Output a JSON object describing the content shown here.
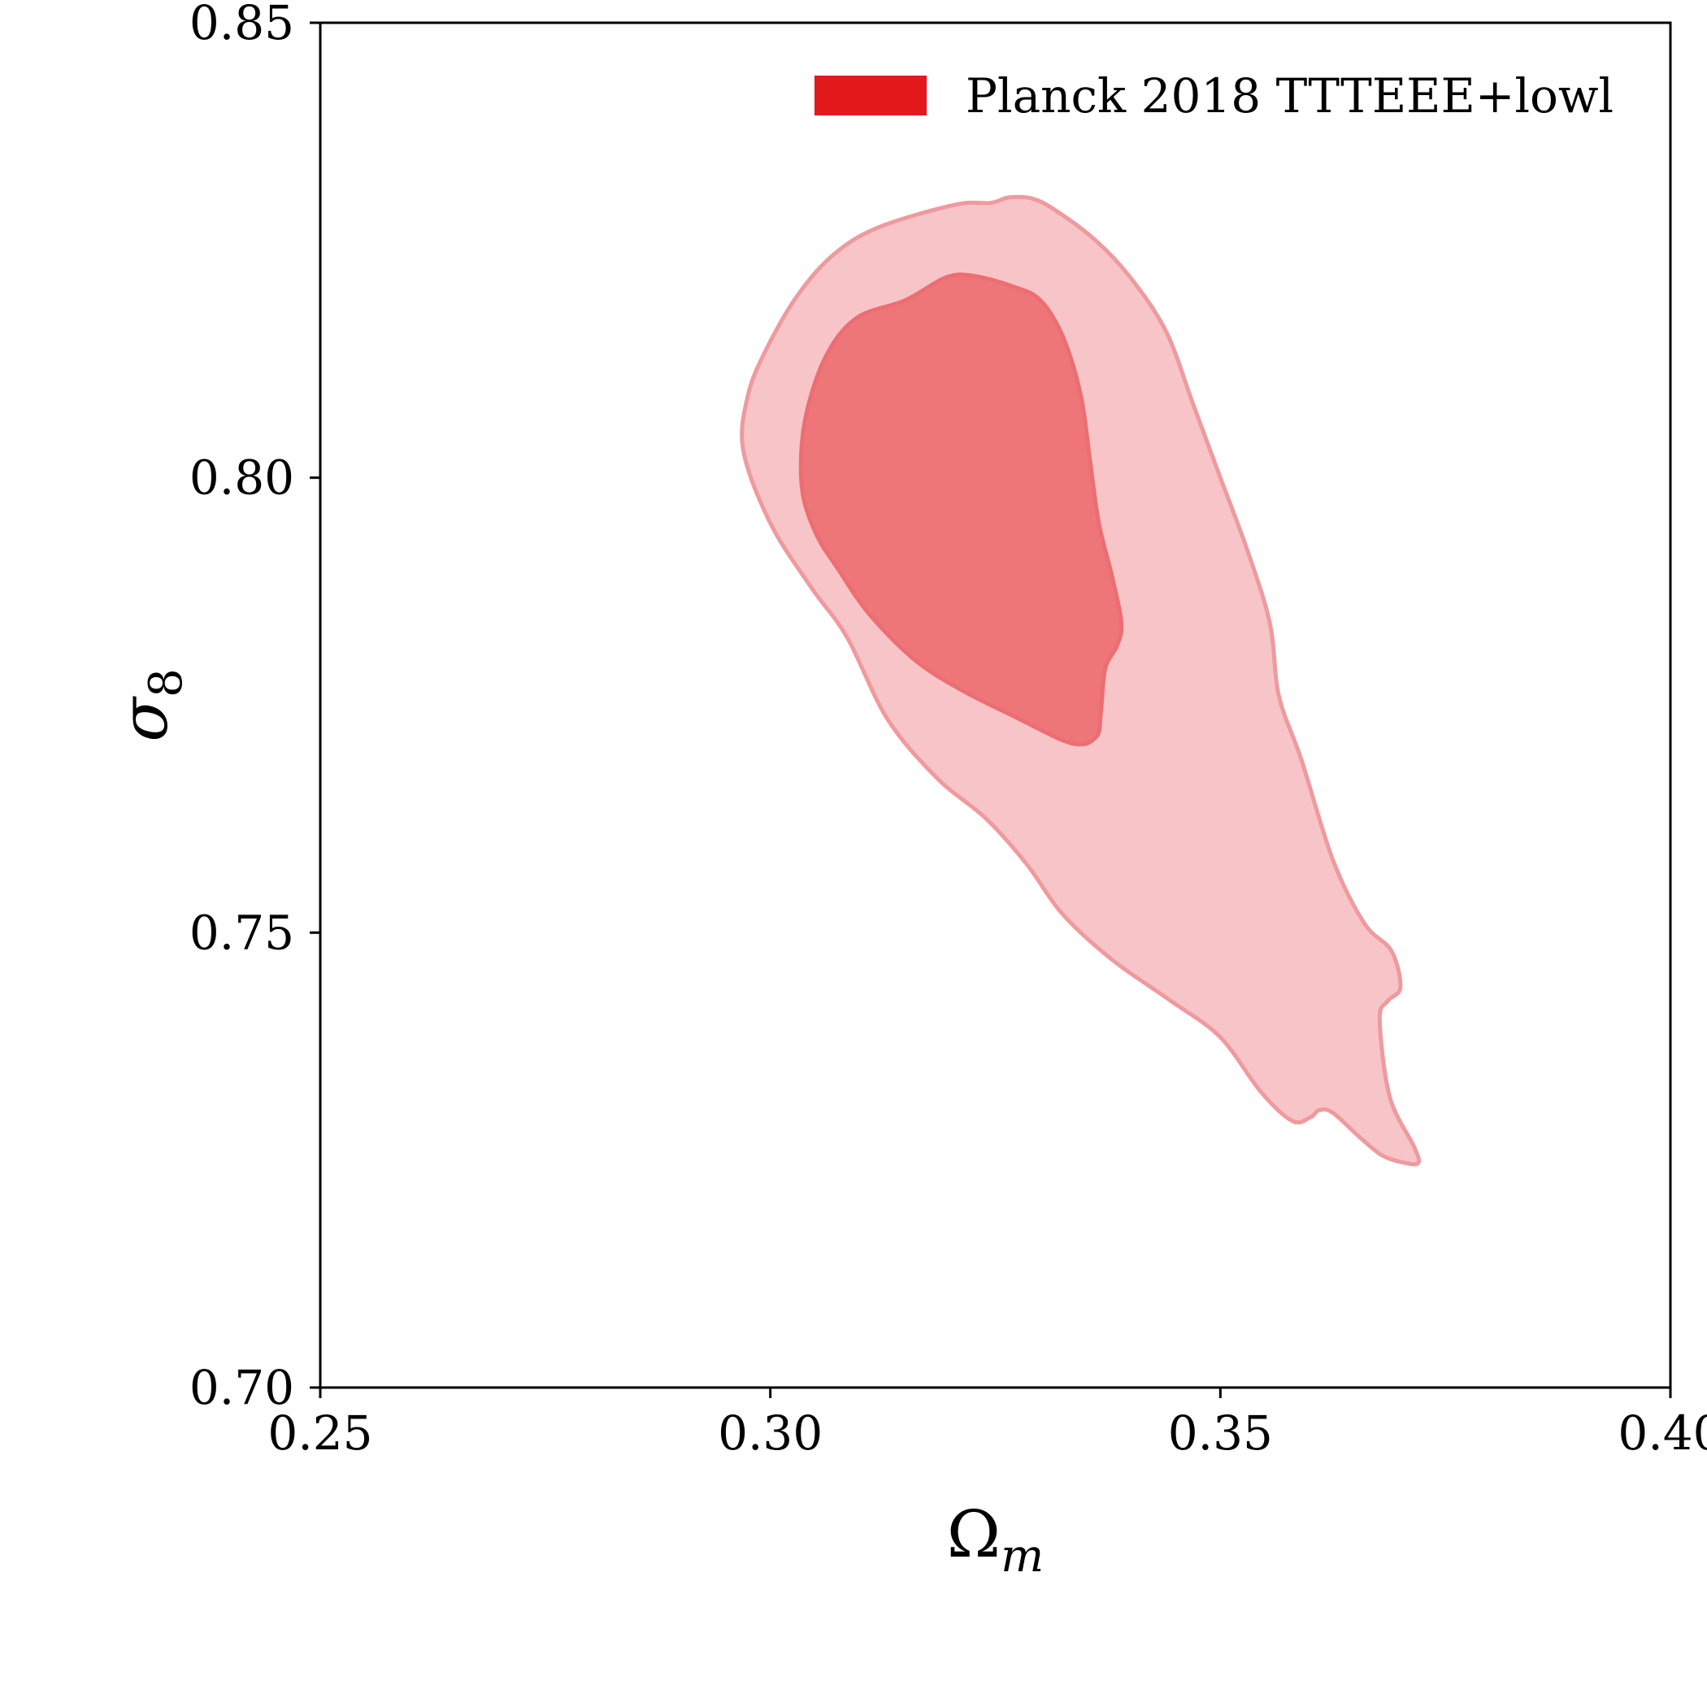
{
  "chart_data": {
    "type": "contour",
    "title": "",
    "xlabel": "Ω",
    "xlabel_sub": "m",
    "ylabel": "σ",
    "ylabel_sub": "8",
    "xlim": [
      0.25,
      0.4
    ],
    "ylim": [
      0.7,
      0.85
    ],
    "xticks": [
      "0.25",
      "0.30",
      "0.35",
      "0.40"
    ],
    "yticks": [
      "0.70",
      "0.75",
      "0.80",
      "0.85"
    ],
    "grid": false,
    "legend_position": "top-right",
    "series": [
      {
        "name": "Planck 2018 TTTEEE+lowl",
        "color": "#e31a1c",
        "levels": [
          {
            "level": "95%",
            "fill": "#f7c5c7",
            "stroke": "#ee9a9e",
            "points": [
              [
                0.312,
                0.8275
              ],
              [
                0.3205,
                0.83
              ],
              [
                0.3245,
                0.8302
              ],
              [
                0.3265,
                0.8308
              ],
              [
                0.329,
                0.8307
              ],
              [
                0.3315,
                0.8295
              ],
              [
                0.336,
                0.8262
              ],
              [
                0.34,
                0.822
              ],
              [
                0.344,
                0.816
              ],
              [
                0.347,
                0.808
              ],
              [
                0.35,
                0.8
              ],
              [
                0.353,
                0.792
              ],
              [
                0.3555,
                0.784
              ],
              [
                0.3565,
                0.776
              ],
              [
                0.359,
                0.769
              ],
              [
                0.3625,
                0.758
              ],
              [
                0.366,
                0.751
              ],
              [
                0.369,
                0.748
              ],
              [
                0.37,
                0.744
              ],
              [
                0.3686,
                0.7425
              ],
              [
                0.3677,
                0.7405
              ],
              [
                0.3688,
                0.732
              ],
              [
                0.3715,
                0.7265
              ],
              [
                0.372,
                0.7247
              ],
              [
                0.3705,
                0.7247
              ],
              [
                0.368,
                0.7255
              ],
              [
                0.3655,
                0.7275
              ],
              [
                0.3625,
                0.7302
              ],
              [
                0.361,
                0.7305
              ],
              [
                0.36,
                0.7297
              ],
              [
                0.358,
                0.7293
              ],
              [
                0.3545,
                0.7325
              ],
              [
                0.35,
                0.7385
              ],
              [
                0.3445,
                0.7425
              ],
              [
                0.338,
                0.747
              ],
              [
                0.3325,
                0.752
              ],
              [
                0.3285,
                0.7575
              ],
              [
                0.324,
                0.7625
              ],
              [
                0.3185,
                0.767
              ],
              [
                0.313,
                0.7735
              ],
              [
                0.3085,
                0.7825
              ],
              [
                0.3045,
                0.788
              ],
              [
                0.3,
                0.795
              ],
              [
                0.297,
                0.803
              ],
              [
                0.2975,
                0.809
              ],
              [
                0.2995,
                0.814
              ],
              [
                0.303,
                0.82
              ],
              [
                0.307,
                0.8245
              ]
            ]
          },
          {
            "level": "68%",
            "fill": "#ee7679",
            "stroke": "#ec6e72",
            "points": [
              [
                0.315,
                0.8195
              ],
              [
                0.3195,
                0.822
              ],
              [
                0.3225,
                0.8222
              ],
              [
                0.327,
                0.821
              ],
              [
                0.33,
                0.8195
              ],
              [
                0.3325,
                0.8155
              ],
              [
                0.3345,
                0.809
              ],
              [
                0.3355,
                0.802
              ],
              [
                0.3365,
                0.795
              ],
              [
                0.338,
                0.789
              ],
              [
                0.339,
                0.784
              ],
              [
                0.3385,
                0.7815
              ],
              [
                0.3372,
                0.779
              ],
              [
                0.3367,
                0.774
              ],
              [
                0.3362,
                0.7715
              ],
              [
                0.3335,
                0.7708
              ],
              [
                0.327,
                0.7738
              ],
              [
                0.321,
                0.7768
              ],
              [
                0.316,
                0.78
              ],
              [
                0.311,
                0.785
              ],
              [
                0.3075,
                0.79
              ],
              [
                0.305,
                0.794
              ],
              [
                0.3035,
                0.799
              ],
              [
                0.3038,
                0.806
              ],
              [
                0.306,
                0.813
              ],
              [
                0.3095,
                0.8175
              ]
            ]
          }
        ]
      }
    ]
  }
}
